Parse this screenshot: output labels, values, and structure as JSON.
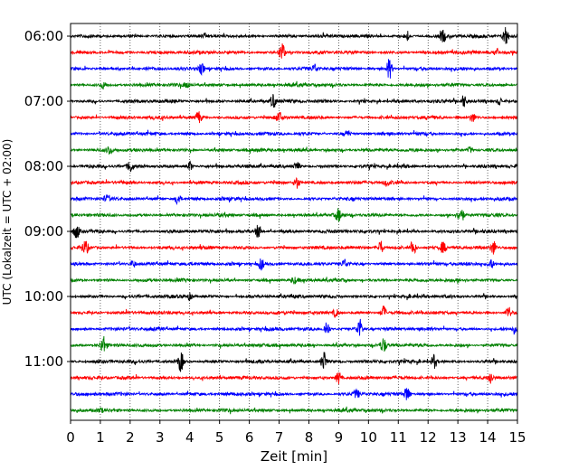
{
  "chart_data": {
    "type": "line",
    "title": "",
    "xlabel": "Zeit  [min]",
    "ylabel": "UTC (Lokalzeit = UTC + 02:00)",
    "xlim": [
      0,
      15
    ],
    "x_ticks": [
      "0",
      "1",
      "2",
      "3",
      "4",
      "5",
      "6",
      "7",
      "8",
      "9",
      "10",
      "11",
      "12",
      "13",
      "14",
      "15"
    ],
    "y_ticks": [
      "06:00",
      "07:00",
      "08:00",
      "09:00",
      "10:00",
      "11:00"
    ],
    "grid": "vertical dotted at each minute",
    "trace_interval_minutes": 15,
    "trace_colors_cycle": [
      "#000000",
      "#ff0000",
      "#0000ff",
      "#008000"
    ],
    "series": [
      {
        "start": "06:00",
        "color": "#000000",
        "events": [
          {
            "t": 14.6,
            "amp": 1.0
          },
          {
            "t": 12.5,
            "amp": 0.6
          },
          {
            "t": 11.3,
            "amp": 0.4
          }
        ]
      },
      {
        "start": "06:15",
        "color": "#ff0000",
        "events": [
          {
            "t": 7.1,
            "amp": 1.0
          },
          {
            "t": 14.3,
            "amp": 0.4
          }
        ]
      },
      {
        "start": "06:30",
        "color": "#0000ff",
        "events": [
          {
            "t": 10.7,
            "amp": 1.0
          },
          {
            "t": 4.4,
            "amp": 0.5
          },
          {
            "t": 8.2,
            "amp": 0.4
          }
        ]
      },
      {
        "start": "06:45",
        "color": "#008000",
        "events": [
          {
            "t": 1.1,
            "amp": 0.3
          },
          {
            "t": 3.9,
            "amp": 0.3
          }
        ]
      },
      {
        "start": "07:00",
        "color": "#000000",
        "events": [
          {
            "t": 6.8,
            "amp": 0.7
          },
          {
            "t": 13.2,
            "amp": 0.6
          },
          {
            "t": 14.4,
            "amp": 0.4
          }
        ]
      },
      {
        "start": "07:15",
        "color": "#ff0000",
        "events": [
          {
            "t": 4.3,
            "amp": 0.6
          },
          {
            "t": 7.0,
            "amp": 0.5
          },
          {
            "t": 13.5,
            "amp": 0.4
          }
        ]
      },
      {
        "start": "07:30",
        "color": "#0000ff",
        "events": [
          {
            "t": 9.3,
            "amp": 0.3
          }
        ]
      },
      {
        "start": "07:45",
        "color": "#008000",
        "events": [
          {
            "t": 1.3,
            "amp": 0.4
          },
          {
            "t": 13.4,
            "amp": 0.3
          }
        ]
      },
      {
        "start": "08:00",
        "color": "#000000",
        "events": [
          {
            "t": 2.0,
            "amp": 0.5
          },
          {
            "t": 4.0,
            "amp": 0.5
          },
          {
            "t": 7.6,
            "amp": 0.4
          }
        ]
      },
      {
        "start": "08:15",
        "color": "#ff0000",
        "events": [
          {
            "t": 7.6,
            "amp": 0.6
          },
          {
            "t": 10.6,
            "amp": 0.3
          }
        ]
      },
      {
        "start": "08:30",
        "color": "#0000ff",
        "events": [
          {
            "t": 3.6,
            "amp": 0.6
          },
          {
            "t": 1.2,
            "amp": 0.3
          }
        ]
      },
      {
        "start": "08:45",
        "color": "#008000",
        "events": [
          {
            "t": 13.1,
            "amp": 0.8
          },
          {
            "t": 9.0,
            "amp": 0.6
          }
        ]
      },
      {
        "start": "09:00",
        "color": "#000000",
        "events": [
          {
            "t": 0.2,
            "amp": 0.7
          },
          {
            "t": 6.3,
            "amp": 0.7
          }
        ]
      },
      {
        "start": "09:15",
        "color": "#ff0000",
        "events": [
          {
            "t": 0.5,
            "amp": 0.7
          },
          {
            "t": 10.4,
            "amp": 0.7
          },
          {
            "t": 11.5,
            "amp": 0.8
          },
          {
            "t": 14.2,
            "amp": 0.7
          },
          {
            "t": 12.5,
            "amp": 0.5
          }
        ]
      },
      {
        "start": "09:30",
        "color": "#0000ff",
        "events": [
          {
            "t": 6.4,
            "amp": 0.6
          },
          {
            "t": 14.1,
            "amp": 0.5
          },
          {
            "t": 2.1,
            "amp": 0.4
          },
          {
            "t": 9.2,
            "amp": 0.4
          }
        ]
      },
      {
        "start": "09:45",
        "color": "#008000",
        "events": [
          {
            "t": 7.5,
            "amp": 0.3
          }
        ]
      },
      {
        "start": "10:00",
        "color": "#000000",
        "events": [
          {
            "t": 4.0,
            "amp": 0.3
          }
        ]
      },
      {
        "start": "10:15",
        "color": "#ff0000",
        "events": [
          {
            "t": 10.5,
            "amp": 0.7
          },
          {
            "t": 14.7,
            "amp": 0.6
          },
          {
            "t": 8.9,
            "amp": 0.4
          }
        ]
      },
      {
        "start": "10:30",
        "color": "#0000ff",
        "events": [
          {
            "t": 8.6,
            "amp": 0.8
          },
          {
            "t": 9.7,
            "amp": 1.0
          },
          {
            "t": 14.9,
            "amp": 0.4
          }
        ]
      },
      {
        "start": "10:45",
        "color": "#008000",
        "events": [
          {
            "t": 1.1,
            "amp": 0.9
          },
          {
            "t": 10.5,
            "amp": 0.7
          }
        ]
      },
      {
        "start": "11:00",
        "color": "#000000",
        "events": [
          {
            "t": 3.7,
            "amp": 1.0
          },
          {
            "t": 8.5,
            "amp": 1.0
          },
          {
            "t": 12.2,
            "amp": 0.7
          }
        ]
      },
      {
        "start": "11:15",
        "color": "#ff0000",
        "events": [
          {
            "t": 9.0,
            "amp": 0.6
          },
          {
            "t": 14.1,
            "amp": 0.6
          }
        ]
      },
      {
        "start": "11:30",
        "color": "#0000ff",
        "events": [
          {
            "t": 11.3,
            "amp": 0.8
          },
          {
            "t": 9.6,
            "amp": 0.4
          }
        ]
      },
      {
        "start": "11:45",
        "color": "#008000",
        "events": [
          {
            "t": 1.0,
            "amp": 0.2
          }
        ]
      }
    ]
  }
}
